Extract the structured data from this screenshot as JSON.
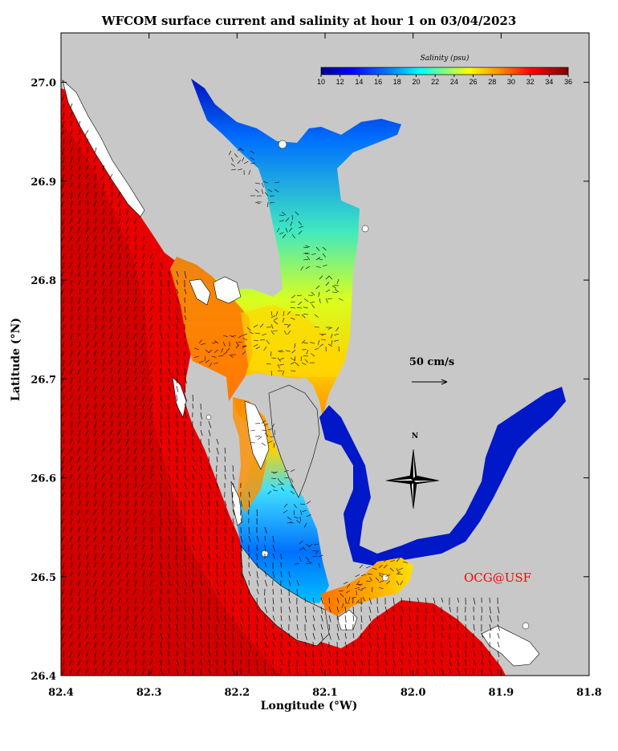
{
  "title": "WFCOM surface current and salinity at hour 1 on 03/04/2023",
  "xaxis": {
    "label": "Longitude (°W)",
    "ticks": [
      "82.4",
      "82.3",
      "82.2",
      "82.1",
      "82.0",
      "81.9",
      "81.8"
    ],
    "range": [
      82.4,
      81.8
    ]
  },
  "yaxis": {
    "label": "Latitude (°N)",
    "ticks": [
      "27.0",
      "26.9",
      "26.8",
      "26.7",
      "26.6",
      "26.5",
      "26.4"
    ],
    "range": [
      26.4,
      27.05
    ]
  },
  "colorbar": {
    "title": "Salinity (psu)",
    "ticks": [
      "10",
      "12",
      "14",
      "16",
      "18",
      "20",
      "22",
      "24",
      "26",
      "28",
      "30",
      "32",
      "34",
      "36"
    ],
    "range": [
      10,
      36
    ],
    "colors": [
      "#00008f",
      "#0000ff",
      "#0060ff",
      "#00b0ff",
      "#00ffff",
      "#60ff9f",
      "#c0ff40",
      "#ffff00",
      "#ffb000",
      "#ff6000",
      "#ff0000",
      "#c00000",
      "#800000"
    ]
  },
  "scale_label": "50 cm/s",
  "compass_label": "N",
  "credit": "OCG@USF",
  "colors": {
    "land": "#c8c8c8",
    "ocean_high_salinity": "#e60000",
    "credit": "#ff0000"
  }
}
